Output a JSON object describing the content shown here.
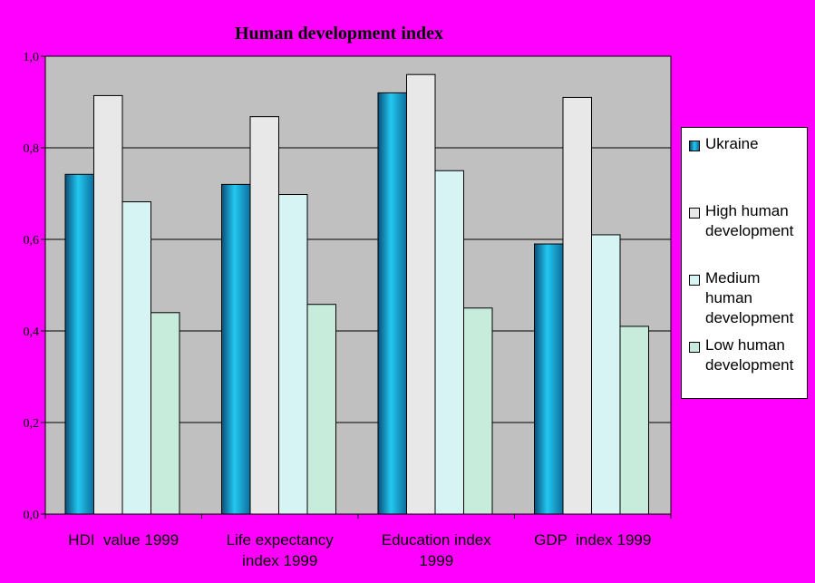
{
  "chart_data": {
    "type": "bar",
    "title": "Human development index",
    "categories": [
      [
        "HDI  value 1999"
      ],
      [
        "Life expectancy",
        "index 1999"
      ],
      [
        "Education index",
        "1999"
      ],
      [
        "GDP  index 1999"
      ]
    ],
    "series": [
      {
        "name": "Ukraine",
        "values": [
          0.742,
          0.72,
          0.92,
          0.59
        ],
        "color": "#1aa8d8"
      },
      {
        "name": "High human development",
        "values": [
          0.914,
          0.868,
          0.96,
          0.91
        ],
        "color": "#e8e8e8"
      },
      {
        "name": "Medium human development",
        "values": [
          0.682,
          0.698,
          0.75,
          0.61
        ],
        "color": "#d6f4f4"
      },
      {
        "name": "Low human development",
        "values": [
          0.44,
          0.458,
          0.45,
          0.41
        ],
        "color": "#c8ecdc"
      }
    ],
    "yticks": [
      "0,0",
      "0,2",
      "0,4",
      "0,6",
      "0,8",
      "1,0"
    ],
    "ylim": [
      0,
      1
    ],
    "grid": true,
    "legend_position": "right",
    "plot_background": "#c0c0c0",
    "page_background": "#ff00ff"
  },
  "legend": {
    "items": [
      {
        "label": "Ukraine"
      },
      {
        "label": "High human development"
      },
      {
        "label": "Medium human development"
      },
      {
        "label": "Low human development"
      }
    ]
  }
}
